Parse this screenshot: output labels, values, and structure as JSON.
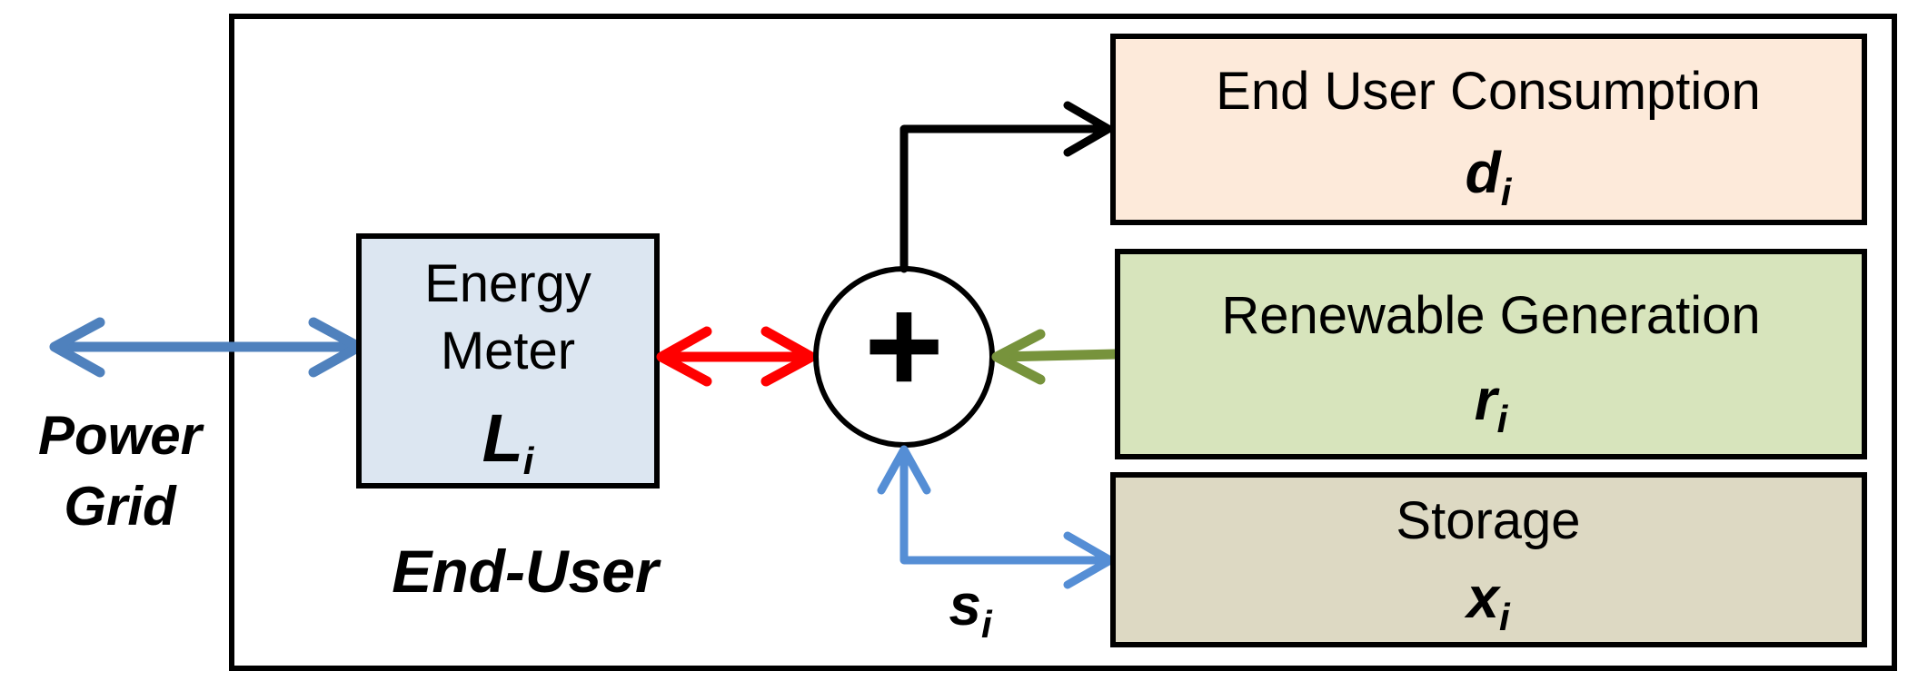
{
  "colors": {
    "outer_border": "#000000",
    "meter_fill": "#dce6f1",
    "consumption_fill": "#fdeada",
    "renewable_fill": "#d7e4bc",
    "storage_fill": "#ddd9c3",
    "grid_arrow": "#4f81bd",
    "meter_arrow": "#ff0000",
    "renewable_arrow": "#77933c",
    "storage_arrow": "#558ed5",
    "consumption_arrow": "#000000"
  },
  "external": {
    "power_grid_line1": "Power",
    "power_grid_line2": "Grid"
  },
  "end_user_label": "End-User",
  "meter": {
    "line1": "Energy",
    "line2": "Meter",
    "symbol": "L",
    "subscript": "i"
  },
  "summing_junction": {
    "symbol": "+"
  },
  "consumption": {
    "title": "End User Consumption",
    "symbol": "d",
    "subscript": "i"
  },
  "renewable": {
    "title": "Renewable Generation",
    "symbol": "r",
    "subscript": "i"
  },
  "storage": {
    "title": "Storage",
    "symbol": "x",
    "subscript": "i"
  },
  "storage_flow": {
    "symbol": "s",
    "subscript": "i"
  }
}
